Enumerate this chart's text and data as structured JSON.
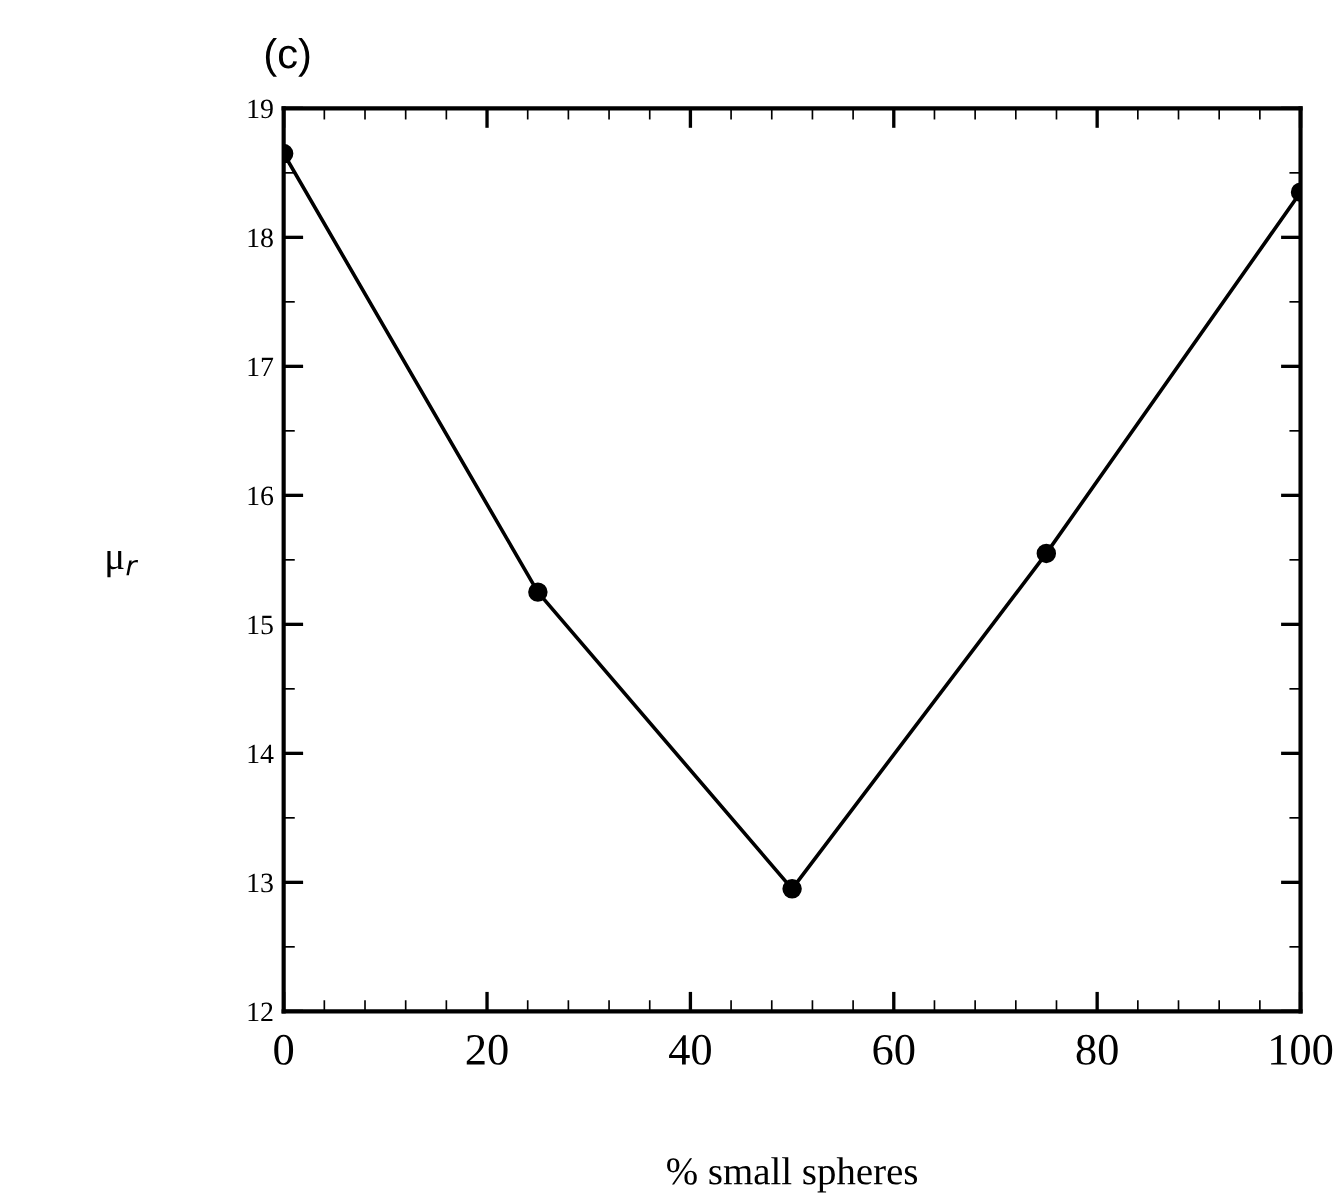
{
  "chart_data": {
    "type": "line",
    "title": "(c)",
    "xlabel": "% small spheres",
    "ylabel": "μ$_{r}$",
    "x": [
      0,
      25,
      50,
      75,
      100
    ],
    "series": [
      {
        "color": "#000000",
        "values": [
          18.65,
          15.25,
          12.95,
          15.55,
          18.35
        ]
      }
    ],
    "marker": "circle",
    "line_style": "solid",
    "grid": false,
    "legend": false,
    "xlim": [
      0,
      100
    ],
    "xticks": [
      0,
      20,
      40,
      60,
      80,
      100
    ],
    "ylim": [
      12,
      19
    ],
    "yticks": [
      12,
      13,
      14,
      15,
      16,
      17,
      18,
      19
    ]
  }
}
